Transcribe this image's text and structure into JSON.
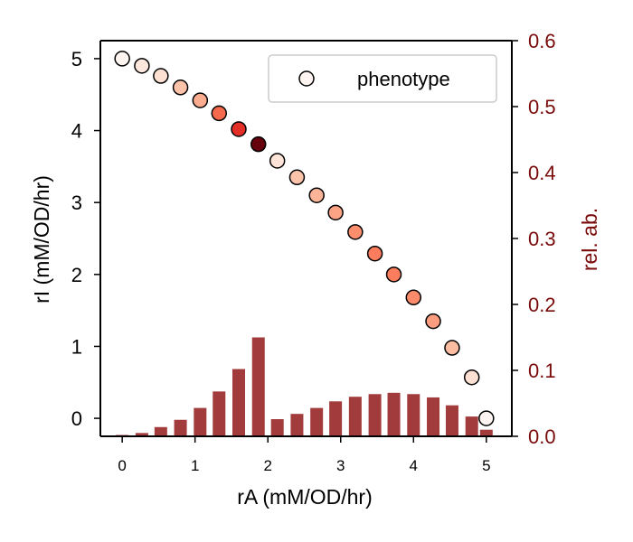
{
  "chart_data": {
    "type": "scatter",
    "title": "",
    "xlabel": "rA (mM/OD/hr)",
    "ylabel": "rI (mM/OD/hr)",
    "y2label": "rel. ab.",
    "xlim": [
      -0.3,
      5.35
    ],
    "ylim": [
      -0.25,
      5.25
    ],
    "y2lim": [
      0.0,
      0.6
    ],
    "x_ticks": [
      "0",
      "1",
      "2",
      "3",
      "4",
      "5"
    ],
    "y_ticks": [
      "0",
      "1",
      "2",
      "3",
      "4",
      "5"
    ],
    "y2_ticks": [
      "0.0",
      "0.1",
      "0.2",
      "0.3",
      "0.4",
      "0.5",
      "0.6"
    ],
    "grid": false,
    "legend": {
      "position": "top-right",
      "entries": [
        "phenotype"
      ]
    },
    "scatter": {
      "name": "phenotype",
      "x": [
        0.0,
        0.27,
        0.53,
        0.8,
        1.07,
        1.33,
        1.6,
        1.87,
        2.13,
        2.4,
        2.67,
        2.93,
        3.2,
        3.47,
        3.73,
        4.0,
        4.27,
        4.53,
        4.8,
        5.0
      ],
      "y": [
        5.0,
        4.9,
        4.76,
        4.6,
        4.42,
        4.24,
        4.02,
        3.81,
        3.58,
        3.35,
        3.1,
        2.86,
        2.59,
        2.29,
        2.0,
        1.68,
        1.35,
        0.98,
        0.57,
        0.0
      ],
      "colors": [
        "#fff5f0",
        "#fee8de",
        "#fde0d2",
        "#fcc2aa",
        "#fcad90",
        "#f5694d",
        "#e32f27",
        "#67000d",
        "#fee5d8",
        "#fcc3ab",
        "#fcb499",
        "#fca285",
        "#fc8e6e",
        "#fb7d5d",
        "#fb7d5d",
        "#fb8b6b",
        "#fc9d7f",
        "#fcbca2",
        "#fde0d2",
        "#fff5f0"
      ]
    },
    "bars": {
      "name": "rel. ab.",
      "x": [
        0.0,
        0.27,
        0.53,
        0.8,
        1.07,
        1.33,
        1.6,
        1.87,
        2.13,
        2.4,
        2.67,
        2.93,
        3.2,
        3.47,
        3.73,
        4.0,
        4.27,
        4.53,
        4.8,
        5.0
      ],
      "values": [
        0.002,
        0.005,
        0.014,
        0.025,
        0.043,
        0.068,
        0.102,
        0.15,
        0.026,
        0.034,
        0.043,
        0.053,
        0.06,
        0.064,
        0.066,
        0.064,
        0.059,
        0.047,
        0.03,
        0.01
      ],
      "color": "#a23b3b"
    },
    "colors": {
      "left_axis": "#000000",
      "right_axis": "#7a0b0b"
    }
  }
}
